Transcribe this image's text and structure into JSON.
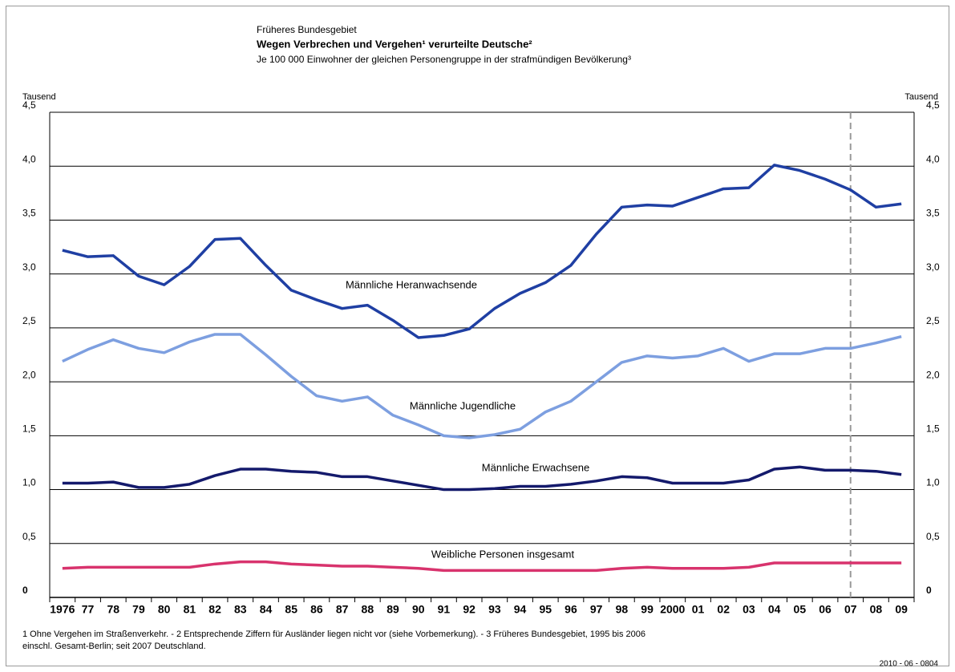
{
  "chart_data": {
    "type": "line",
    "supertitle": "Früheres Bundesgebiet",
    "title": "Wegen Verbrechen und Vergehen¹ verurteilte Deutsche²",
    "subtitle": "Je 100 000 Einwohner der gleichen Personengruppe in der strafmündigen Bevölkerung³",
    "ylabel": "Tausend",
    "y2label": "Tausend",
    "categories": [
      "1976",
      "77",
      "78",
      "79",
      "80",
      "81",
      "82",
      "83",
      "84",
      "85",
      "86",
      "87",
      "88",
      "89",
      "90",
      "91",
      "92",
      "93",
      "94",
      "95",
      "96",
      "97",
      "98",
      "99",
      "2000",
      "01",
      "02",
      "03",
      "04",
      "05",
      "06",
      "07",
      "08",
      "09"
    ],
    "series": [
      {
        "name": "Männliche Heranwachsende",
        "color": "#1f3fa3",
        "values": [
          3.22,
          3.16,
          3.17,
          2.98,
          2.9,
          3.07,
          3.32,
          3.33,
          3.08,
          2.85,
          2.76,
          2.68,
          2.71,
          2.57,
          2.41,
          2.43,
          2.49,
          2.68,
          2.82,
          2.92,
          3.08,
          3.37,
          3.62,
          3.64,
          3.63,
          3.71,
          3.79,
          3.8,
          4.01,
          3.96,
          3.88,
          3.78,
          3.62,
          3.65
        ]
      },
      {
        "name": "Männliche Jugendliche",
        "color": "#7d9fe0",
        "values": [
          2.19,
          2.3,
          2.39,
          2.31,
          2.27,
          2.37,
          2.44,
          2.44,
          2.25,
          2.05,
          1.87,
          1.82,
          1.86,
          1.69,
          1.6,
          1.5,
          1.48,
          1.51,
          1.56,
          1.72,
          1.82,
          2.0,
          2.18,
          2.24,
          2.22,
          2.24,
          2.31,
          2.19,
          2.26,
          2.26,
          2.31,
          2.31,
          2.36,
          2.42
        ]
      },
      {
        "name": "Männliche Erwachsene",
        "color": "#141a6c",
        "values": [
          1.06,
          1.06,
          1.07,
          1.02,
          1.02,
          1.05,
          1.13,
          1.19,
          1.19,
          1.17,
          1.16,
          1.12,
          1.12,
          1.08,
          1.04,
          1.0,
          1.0,
          1.01,
          1.03,
          1.03,
          1.05,
          1.08,
          1.12,
          1.11,
          1.06,
          1.06,
          1.06,
          1.09,
          1.19,
          1.21,
          1.18,
          1.18,
          1.17,
          1.14
        ]
      },
      {
        "name": "Weibliche Personen insgesamt",
        "color": "#d8336d",
        "values": [
          0.27,
          0.28,
          0.28,
          0.28,
          0.28,
          0.28,
          0.31,
          0.33,
          0.33,
          0.31,
          0.3,
          0.29,
          0.29,
          0.28,
          0.27,
          0.25,
          0.25,
          0.25,
          0.25,
          0.25,
          0.25,
          0.25,
          0.27,
          0.28,
          0.27,
          0.27,
          0.27,
          0.28,
          0.32,
          0.32,
          0.32,
          0.32,
          0.32,
          0.32
        ]
      }
    ],
    "ylim": [
      0,
      4.5
    ],
    "yticks": [
      0,
      {
        "value": 0.5,
        "label": "0,5"
      },
      {
        "value": 1.0,
        "label": "1,0"
      },
      {
        "value": 1.5,
        "label": "1,5"
      },
      {
        "value": 2.0,
        "label": "2,0"
      },
      {
        "value": 2.5,
        "label": "2,5"
      },
      {
        "value": 3.0,
        "label": "3,0"
      },
      {
        "value": 3.5,
        "label": "3,5"
      },
      {
        "value": 4.0,
        "label": "4,0"
      },
      {
        "value": 4.5,
        "label": "4,5"
      }
    ],
    "grid": true,
    "footnote": [
      "1 Ohne Vergehen im Straßenverkehr. - 2 Entsprechende Ziffern für Ausländer liegen nicht vor (siehe Vorbemerkung). - 3 Früheres Bundesgebiet, 1995 bis 2006",
      "einschl. Gesamt-Berlin; seit 2007 Deutschland."
    ],
    "source": "2010 - 06 - 0804"
  }
}
